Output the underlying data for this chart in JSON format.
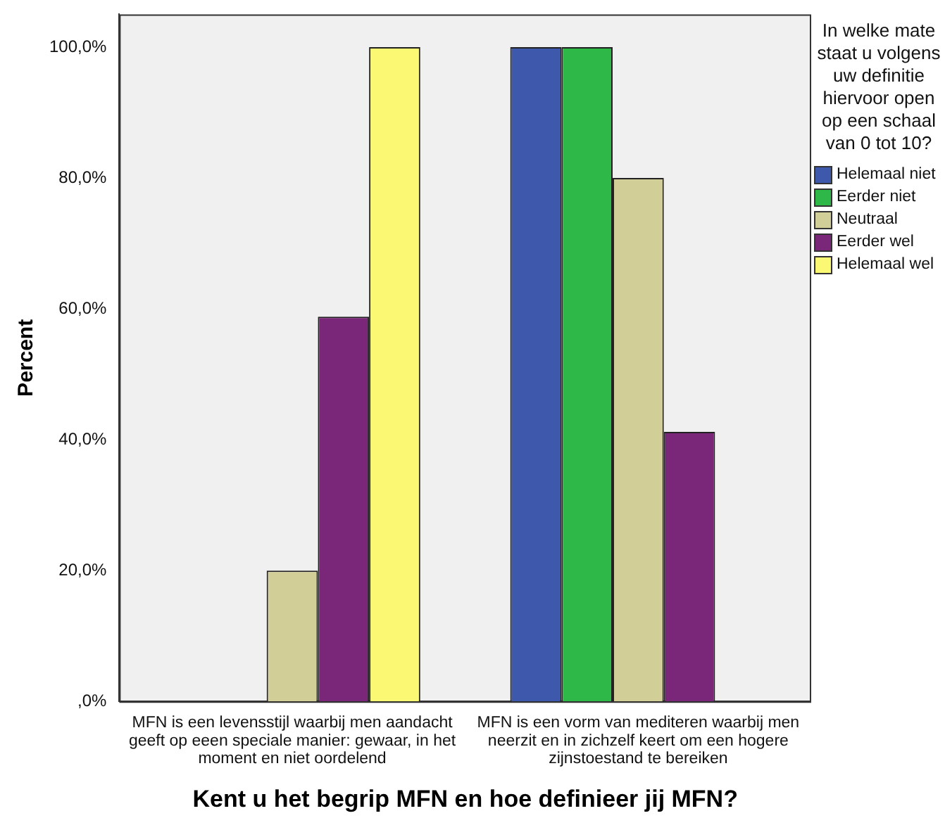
{
  "chart_data": {
    "type": "bar",
    "xlabel": "Kent u het begrip MFN en hoe definieer jij MFN?",
    "ylabel": "Percent",
    "legend_title": "In welke mate staat u volgens uw definitie hiervoor open op een schaal van 0 tot 10?",
    "categories": [
      "MFN is een levensstijl waarbij men aandacht geeft op eeen speciale manier: gewaar, in het moment en niet oordelend",
      "MFN is een vorm van mediteren waarbij men neerzit en in zichzelf keert om een hogere zijnstoestand te bereiken"
    ],
    "series": [
      {
        "name": "Helemaal niet",
        "color": "#3e58ac",
        "values": [
          null,
          100
        ]
      },
      {
        "name": "Eerder niet",
        "color": "#2eb848",
        "values": [
          null,
          100
        ]
      },
      {
        "name": "Neutraal",
        "color": "#d2ce98",
        "values": [
          20,
          80
        ]
      },
      {
        "name": "Eerder wel",
        "color": "#7b2779",
        "values": [
          58.8,
          41.2
        ]
      },
      {
        "name": "Helemaal wel",
        "color": "#fbf873",
        "values": [
          100,
          null
        ]
      }
    ],
    "ylim": [
      0,
      105
    ],
    "yticks": [
      {
        "value": 0,
        "label": ",0%"
      },
      {
        "value": 20,
        "label": "20,0%"
      },
      {
        "value": 40,
        "label": "40,0%"
      },
      {
        "value": 60,
        "label": "60,0%"
      },
      {
        "value": 80,
        "label": "80,0%"
      },
      {
        "value": 100,
        "label": "100,0%"
      }
    ],
    "grid": false,
    "legend": "right"
  }
}
